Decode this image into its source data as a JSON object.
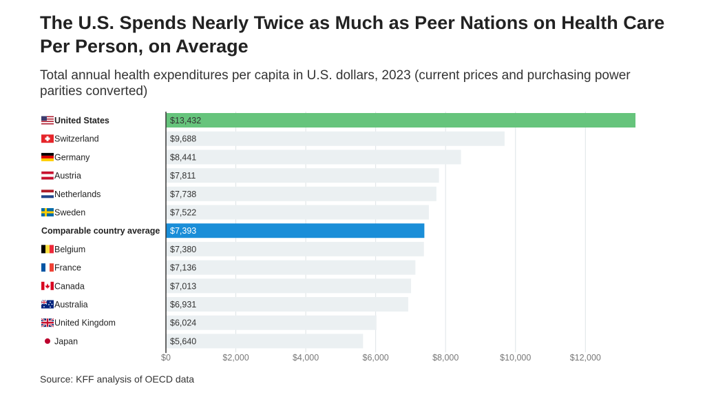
{
  "header": {
    "title": "The U.S. Spends Nearly Twice as Much as Peer Nations on Health Care Per Person, on Average",
    "subtitle": "Total annual health expenditures per capita in U.S. dollars, 2023 (current prices and purchasing power parities converted)"
  },
  "footer": {
    "source": "Source: KFF analysis of OECD data"
  },
  "colors": {
    "us": "#66c47c",
    "average": "#1a8ed8",
    "default": "#ebf0f2",
    "grid": "#dde3e6",
    "axis": "#333333"
  },
  "chart_data": {
    "type": "bar",
    "orientation": "horizontal",
    "categories": [
      "United States",
      "Switzerland",
      "Germany",
      "Austria",
      "Netherlands",
      "Sweden",
      "Comparable country average",
      "Belgium",
      "France",
      "Canada",
      "Australia",
      "United Kingdom",
      "Japan"
    ],
    "values": [
      13432,
      9688,
      8441,
      7811,
      7738,
      7522,
      7393,
      7380,
      7136,
      7013,
      6931,
      6024,
      5640
    ],
    "value_labels": [
      "$13,432",
      "$9,688",
      "$8,441",
      "$7,811",
      "$7,738",
      "$7,522",
      "$7,393",
      "$7,380",
      "$7,136",
      "$7,013",
      "$6,931",
      "$6,024",
      "$5,640"
    ],
    "flags": [
      "us-flag-icon",
      "switzerland-flag-icon",
      "germany-flag-icon",
      "austria-flag-icon",
      "netherlands-flag-icon",
      "sweden-flag-icon",
      "",
      "belgium-flag-icon",
      "france-flag-icon",
      "canada-flag-icon",
      "australia-flag-icon",
      "uk-flag-icon",
      "japan-flag-icon"
    ],
    "bold": [
      true,
      false,
      false,
      false,
      false,
      false,
      true,
      false,
      false,
      false,
      false,
      false,
      false
    ],
    "highlight": [
      "us",
      "",
      "",
      "",
      "",
      "",
      "average",
      "",
      "",
      "",
      "",
      "",
      ""
    ],
    "xlim": [
      0,
      13432
    ],
    "xticks": [
      0,
      2000,
      4000,
      6000,
      8000,
      10000,
      12000
    ],
    "xtick_labels": [
      "$0",
      "$2,000",
      "$4,000",
      "$6,000",
      "$8,000",
      "$10,000",
      "$12,000"
    ],
    "grid": true,
    "legend": "none"
  }
}
